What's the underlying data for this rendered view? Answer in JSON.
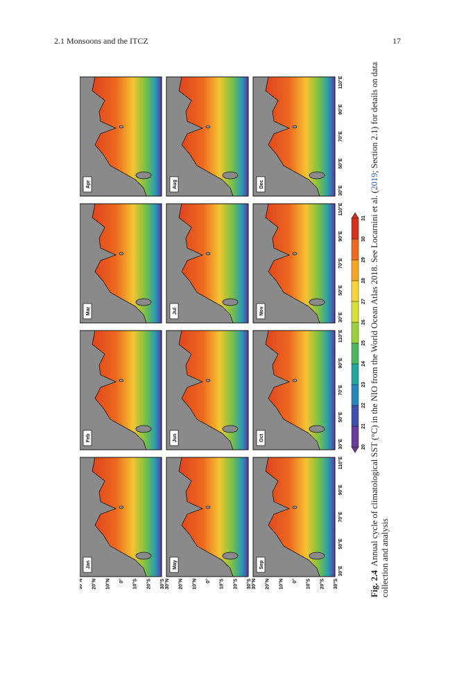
{
  "header": {
    "section": "2.1 Monsoons and the ITCZ",
    "page": "17"
  },
  "figure": {
    "panels": [
      "Jan",
      "Feb",
      "Mar",
      "Apr",
      "May",
      "Jun",
      "Jul",
      "Aug",
      "Sep",
      "Oct",
      "Nov",
      "Dec"
    ],
    "lat_labels": [
      "30°N",
      "20°N",
      "10°N",
      "0°",
      "10°S",
      "20°S",
      "30°S"
    ],
    "lon_labels": [
      "30°E",
      "50°E",
      "70°E",
      "90°E",
      "110°E"
    ],
    "colorbar_ticks": [
      20,
      21,
      22,
      23,
      24,
      25,
      26,
      27,
      28,
      29,
      30,
      31
    ]
  },
  "caption": {
    "label": "Fig. 2.4",
    "text_before": "Annual cycle of climatological SST (°C) in the NIO from the World Ocean Atlas 2018. See Locarnini et al. (",
    "link": "2019",
    "text_after": "; Section 2.1) for details on data collection and analysis"
  }
}
